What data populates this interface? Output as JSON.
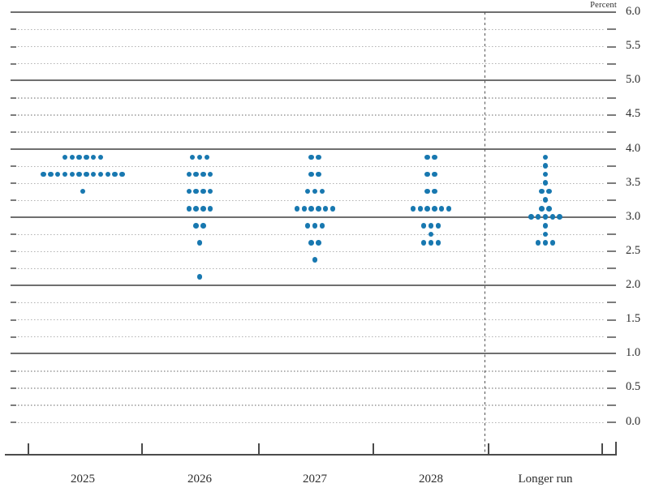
{
  "chart_data": {
    "type": "scatter",
    "subtype": "fomc-dot-plot",
    "ylabel": "Percent",
    "ylim": [
      0.0,
      6.0
    ],
    "y_tick_step": 0.5,
    "y_minor_step": 0.25,
    "solid_gridline_values": [
      6.0,
      5.0,
      4.0,
      3.0,
      2.0,
      1.0
    ],
    "zero_line_style": "dotted",
    "legend_position": "none",
    "y_ticks": [
      {
        "value": 6.0,
        "label": "6.0"
      },
      {
        "value": 5.5,
        "label": "5.5"
      },
      {
        "value": 5.0,
        "label": "5.0"
      },
      {
        "value": 4.5,
        "label": "4.5"
      },
      {
        "value": 4.0,
        "label": "4.0"
      },
      {
        "value": 3.5,
        "label": "3.5"
      },
      {
        "value": 3.0,
        "label": "3.0"
      },
      {
        "value": 2.5,
        "label": "2.5"
      },
      {
        "value": 2.0,
        "label": "2.0"
      },
      {
        "value": 1.5,
        "label": "1.5"
      },
      {
        "value": 1.0,
        "label": "1.0"
      },
      {
        "value": 0.5,
        "label": "0.5"
      },
      {
        "value": 0.0,
        "label": "0.0"
      }
    ],
    "categories": [
      "2025",
      "2026",
      "2027",
      "2028",
      "Longer run"
    ],
    "separator": {
      "style": "dashed-vertical",
      "between": [
        "2028",
        "Longer run"
      ]
    },
    "dot_color": "#1878b0",
    "dots_per_column": 19,
    "series": [
      {
        "name": "2025",
        "dots": [
          {
            "rate": 3.875,
            "count": 6
          },
          {
            "rate": 3.625,
            "count": 12
          },
          {
            "rate": 3.375,
            "count": 1
          }
        ]
      },
      {
        "name": "2026",
        "dots": [
          {
            "rate": 3.875,
            "count": 3
          },
          {
            "rate": 3.625,
            "count": 4
          },
          {
            "rate": 3.375,
            "count": 4
          },
          {
            "rate": 3.125,
            "count": 4
          },
          {
            "rate": 2.875,
            "count": 2
          },
          {
            "rate": 2.625,
            "count": 1
          },
          {
            "rate": 2.125,
            "count": 1
          }
        ]
      },
      {
        "name": "2027",
        "dots": [
          {
            "rate": 3.875,
            "count": 2
          },
          {
            "rate": 3.625,
            "count": 2
          },
          {
            "rate": 3.375,
            "count": 3
          },
          {
            "rate": 3.125,
            "count": 6
          },
          {
            "rate": 2.875,
            "count": 3
          },
          {
            "rate": 2.625,
            "count": 2
          },
          {
            "rate": 2.375,
            "count": 1
          }
        ]
      },
      {
        "name": "2028",
        "dots": [
          {
            "rate": 3.875,
            "count": 2
          },
          {
            "rate": 3.625,
            "count": 2
          },
          {
            "rate": 3.375,
            "count": 2
          },
          {
            "rate": 3.125,
            "count": 6
          },
          {
            "rate": 2.875,
            "count": 3
          },
          {
            "rate": 2.75,
            "count": 1
          },
          {
            "rate": 2.625,
            "count": 3
          }
        ]
      },
      {
        "name": "Longer run",
        "dots": [
          {
            "rate": 3.875,
            "count": 1
          },
          {
            "rate": 3.75,
            "count": 1
          },
          {
            "rate": 3.625,
            "count": 1
          },
          {
            "rate": 3.5,
            "count": 1
          },
          {
            "rate": 3.375,
            "count": 2
          },
          {
            "rate": 3.25,
            "count": 1
          },
          {
            "rate": 3.125,
            "count": 2
          },
          {
            "rate": 3.0,
            "count": 5
          },
          {
            "rate": 2.875,
            "count": 1
          },
          {
            "rate": 2.75,
            "count": 1
          },
          {
            "rate": 2.625,
            "count": 3
          }
        ]
      }
    ]
  }
}
